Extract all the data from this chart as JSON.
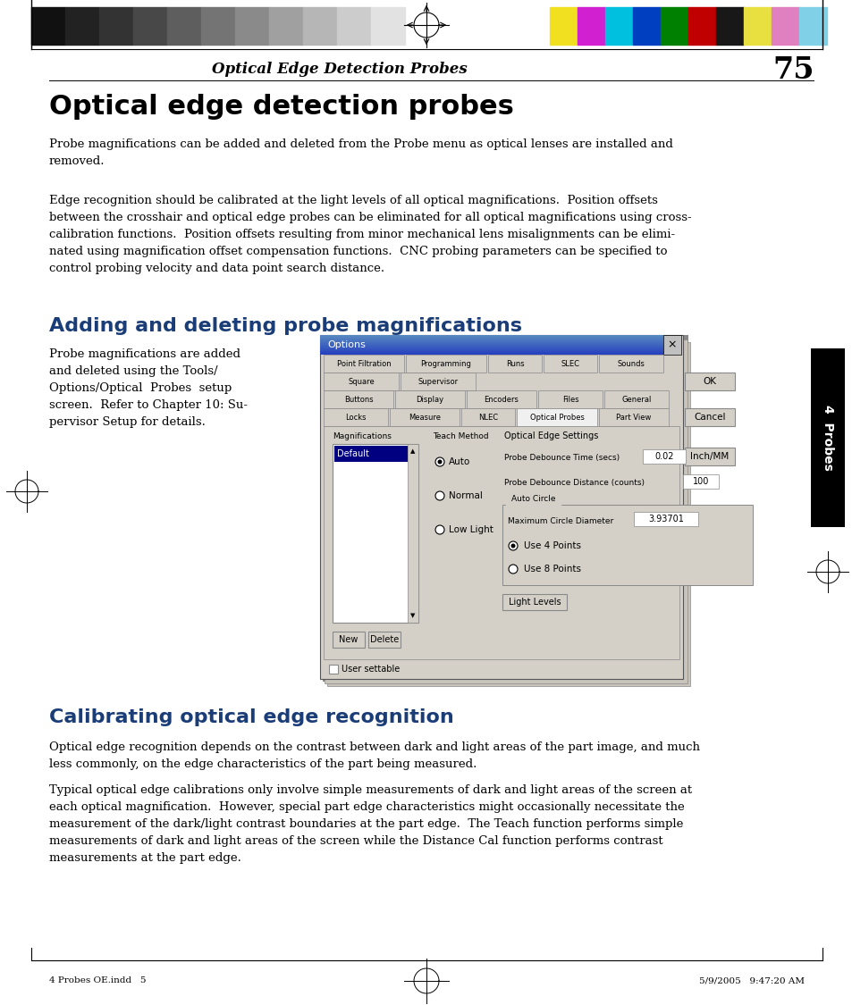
{
  "page_title_italic": "Optical Edge Detection Probes",
  "page_number": "75",
  "main_title": "Optical edge detection probes",
  "section2_title": "Adding and deleting probe magnifications",
  "section2_para": "Probe magnifications are added\nand deleted using the Tools/\nOptions/Optical Probes  setup\nscreen.  Refer to Chapter 10: Su-\npervisor Setup for details.",
  "section3_title": "Calibrating optical edge recognition",
  "footer_left": "4 Probes OE.indd   5",
  "footer_right": "5/9/2005   9:47:20 AM",
  "tab_label": "4  Probes",
  "gray_colors": [
    "#111111",
    "#222222",
    "#333333",
    "#484848",
    "#5e5e5e",
    "#747474",
    "#8a8a8a",
    "#a0a0a0",
    "#b6b6b6",
    "#cccccc",
    "#e2e2e2"
  ],
  "color_bars": [
    "#f0e020",
    "#d020d0",
    "#00c0e0",
    "#0040c0",
    "#008000",
    "#c00000",
    "#181818",
    "#e8e040",
    "#e080c0",
    "#80d0e8"
  ],
  "bg_color": "#ffffff",
  "section_title_color": "#1a3d78",
  "dialog_bg": "#d4d0c8",
  "dialog_border": "#808080"
}
